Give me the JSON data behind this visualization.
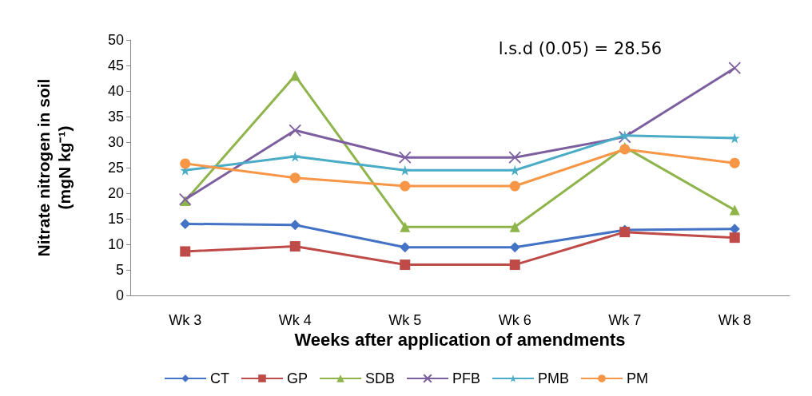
{
  "chart_data": {
    "type": "line",
    "xlabel": "Weeks after application of amendments",
    "ylabel": "Nitrate nitrogen in soil\n(mgN kg⁻¹)",
    "annotations": [
      "l.s.d (0.05) = 28.56"
    ],
    "categories": [
      "Wk 3",
      "Wk 4",
      "Wk 5",
      "Wk 6",
      "Wk 7",
      "Wk 8"
    ],
    "series": [
      {
        "name": "CT",
        "color": "#4472c4",
        "marker": "diamond",
        "values": [
          14,
          13.8,
          9.4,
          9.4,
          12.8,
          13
        ]
      },
      {
        "name": "GP",
        "color": "#be4b48",
        "marker": "square",
        "values": [
          8.6,
          9.6,
          6,
          6,
          12.4,
          11.3
        ]
      },
      {
        "name": "SDB",
        "color": "#8eb44a",
        "marker": "triangle",
        "values": [
          18.5,
          43,
          13.4,
          13.4,
          29,
          16.7
        ]
      },
      {
        "name": "PFB",
        "color": "#7d5fa0",
        "marker": "cross",
        "values": [
          18.8,
          32.3,
          27,
          27,
          31,
          44.5
        ]
      },
      {
        "name": "PMB",
        "color": "#4aacc6",
        "marker": "star",
        "values": [
          24.5,
          27.2,
          24.5,
          24.5,
          31.3,
          30.8
        ]
      },
      {
        "name": "PM",
        "color": "#f79646",
        "marker": "circle",
        "values": [
          25.8,
          23,
          21.4,
          21.4,
          28.6,
          25.9
        ]
      }
    ],
    "ylim": [
      0,
      50
    ],
    "yticks": [
      0,
      5,
      10,
      15,
      20,
      25,
      30,
      35,
      40,
      45,
      50
    ],
    "grid": false,
    "legend": "bottom"
  }
}
